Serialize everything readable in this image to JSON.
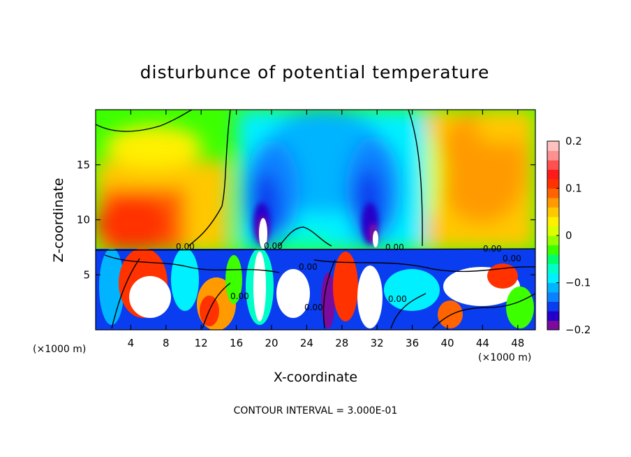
{
  "chart_data": {
    "type": "heatmap",
    "title": "disturbunce of potential temperature",
    "xlabel": "X-coordinate",
    "ylabel": "Z-coordinate",
    "x_unit_label": "(×1000 m)",
    "x_unit_label_right": "(×1000 m)",
    "xlim": [
      0,
      50
    ],
    "ylim": [
      0,
      20
    ],
    "x_ticks": [
      4,
      8,
      12,
      16,
      20,
      24,
      28,
      32,
      36,
      40,
      44,
      48
    ],
    "y_ticks": [
      5,
      10,
      15
    ],
    "colorbar": {
      "range": [
        -0.2,
        0.2
      ],
      "tick_values": [
        0.2,
        0.1,
        0,
        -0.1,
        -0.2
      ],
      "tick_labels": [
        "0.2",
        "0.1",
        "0",
        "−0.1",
        "−0.2"
      ],
      "colors": [
        "#7b0b9c",
        "#2600c8",
        "#0a3cf0",
        "#0a82ff",
        "#00b4ff",
        "#00f0ff",
        "#00ffc8",
        "#00ff6e",
        "#3cff00",
        "#96ff00",
        "#dcff00",
        "#fff000",
        "#ffc800",
        "#ff9b00",
        "#ff6400",
        "#ff3200",
        "#ff1a1a",
        "#ff5050",
        "#ff9090",
        "#ffc0c0"
      ]
    },
    "contour_labels": [
      "0.00",
      "0.00",
      "0.00",
      "0.00",
      "0.00",
      "0.00",
      "0.00",
      "0.00",
      "0.00"
    ],
    "note": "CONTOUR INTERVAL = 3.000E-01",
    "grid": false
  }
}
